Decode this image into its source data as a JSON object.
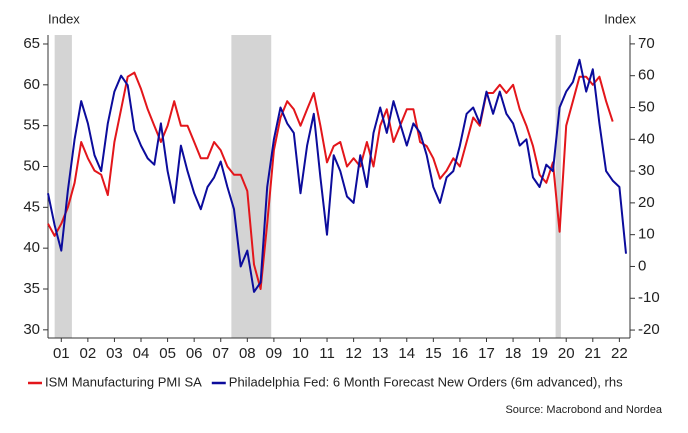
{
  "chart_data": {
    "type": "line",
    "y_label": "Index",
    "y2_label": "Index",
    "source": "Source: Macrobond and Nordea",
    "shaded_periods": [
      [
        2001.25,
        2001.9
      ],
      [
        2007.9,
        2009.4
      ],
      [
        2020.1,
        2020.3
      ]
    ],
    "shade_color": "#d4d4d4",
    "xlim": [
      2001,
      2022.9
    ],
    "xticks": [
      {
        "value": 2001.5,
        "label": "01"
      },
      {
        "value": 2002.5,
        "label": "02"
      },
      {
        "value": 2003.5,
        "label": "03"
      },
      {
        "value": 2004.5,
        "label": "04"
      },
      {
        "value": 2005.5,
        "label": "05"
      },
      {
        "value": 2006.5,
        "label": "06"
      },
      {
        "value": 2007.5,
        "label": "07"
      },
      {
        "value": 2008.5,
        "label": "08"
      },
      {
        "value": 2009.5,
        "label": "09"
      },
      {
        "value": 2010.5,
        "label": "10"
      },
      {
        "value": 2011.5,
        "label": "11"
      },
      {
        "value": 2012.5,
        "label": "12"
      },
      {
        "value": 2013.5,
        "label": "13"
      },
      {
        "value": 2014.5,
        "label": "14"
      },
      {
        "value": 2015.5,
        "label": "15"
      },
      {
        "value": 2016.5,
        "label": "16"
      },
      {
        "value": 2017.5,
        "label": "17"
      },
      {
        "value": 2018.5,
        "label": "18"
      },
      {
        "value": 2019.5,
        "label": "19"
      },
      {
        "value": 2020.5,
        "label": "20"
      },
      {
        "value": 2021.5,
        "label": "21"
      },
      {
        "value": 2022.5,
        "label": "22"
      }
    ],
    "ylim": [
      29,
      66.1
    ],
    "yticks": [
      30,
      35,
      40,
      45,
      50,
      55,
      60,
      65
    ],
    "y2lim": [
      -22.5,
      72.8
    ],
    "y2ticks": [
      -20,
      -10,
      0,
      10,
      20,
      30,
      40,
      50,
      60,
      70
    ],
    "x": [
      2001,
      2001.25,
      2001.5,
      2001.75,
      2002,
      2002.25,
      2002.5,
      2002.75,
      2003,
      2003.25,
      2003.5,
      2003.75,
      2004,
      2004.25,
      2004.5,
      2004.75,
      2005,
      2005.25,
      2005.5,
      2005.75,
      2006,
      2006.25,
      2006.5,
      2006.75,
      2007,
      2007.25,
      2007.5,
      2007.75,
      2008,
      2008.25,
      2008.5,
      2008.75,
      2009,
      2009.25,
      2009.5,
      2009.75,
      2010,
      2010.25,
      2010.5,
      2010.75,
      2011,
      2011.25,
      2011.5,
      2011.75,
      2012,
      2012.25,
      2012.5,
      2012.75,
      2013,
      2013.25,
      2013.5,
      2013.75,
      2014,
      2014.25,
      2014.5,
      2014.75,
      2015,
      2015.25,
      2015.5,
      2015.75,
      2016,
      2016.25,
      2016.5,
      2016.75,
      2017,
      2017.25,
      2017.5,
      2017.75,
      2018,
      2018.25,
      2018.5,
      2018.75,
      2019,
      2019.25,
      2019.5,
      2019.75,
      2020,
      2020.25,
      2020.5,
      2020.75,
      2021,
      2021.25,
      2021.5,
      2021.75,
      2022,
      2022.25,
      2022.5,
      2022.75
    ],
    "series": [
      {
        "name": "ISM Manufacturing PMI SA",
        "color": "#e3161b",
        "values": [
          43,
          41.5,
          43,
          45,
          48,
          53,
          51,
          49.5,
          49,
          46.5,
          53,
          57,
          61,
          61.5,
          59.5,
          57,
          55,
          53,
          55,
          58,
          55,
          55,
          53,
          51,
          51,
          53,
          52,
          50,
          49,
          49,
          47,
          38,
          35,
          43,
          52,
          56,
          58,
          57,
          55,
          57,
          59,
          55,
          50.5,
          52.5,
          53,
          50,
          51,
          50,
          53,
          50,
          55,
          57,
          53,
          55,
          57,
          57,
          53,
          52.5,
          51,
          48.5,
          49.5,
          51,
          50,
          53,
          56,
          55,
          59,
          59,
          60,
          59,
          60,
          57,
          55,
          52.5,
          49,
          48,
          50.5,
          42,
          55,
          58,
          61,
          61,
          60,
          61,
          58,
          55.5,
          null,
          null
        ]
      },
      {
        "name": "Philadelphia Fed: 6 Month Forecast New Orders (6m advanced), rhs",
        "color": "#0c0c9c",
        "axis": "y2",
        "values": [
          23,
          13,
          5,
          24,
          40,
          52,
          45,
          35,
          30,
          45,
          55,
          60,
          57,
          43,
          38,
          34,
          32,
          45,
          30,
          20,
          38,
          30,
          23,
          18,
          25,
          28,
          33,
          25,
          18,
          0,
          5,
          -8,
          -5,
          25,
          40,
          50,
          45,
          42,
          23,
          38,
          48,
          28,
          10,
          35,
          30,
          22,
          20,
          35,
          25,
          42,
          50,
          42,
          52,
          45,
          38,
          45,
          42,
          35,
          25,
          20,
          28,
          30,
          38,
          48,
          50,
          45,
          55,
          48,
          55,
          48,
          45,
          38,
          40,
          28,
          25,
          32,
          30,
          50,
          55,
          58,
          65,
          55,
          62,
          45,
          30,
          27,
          25,
          4
        ]
      }
    ]
  }
}
